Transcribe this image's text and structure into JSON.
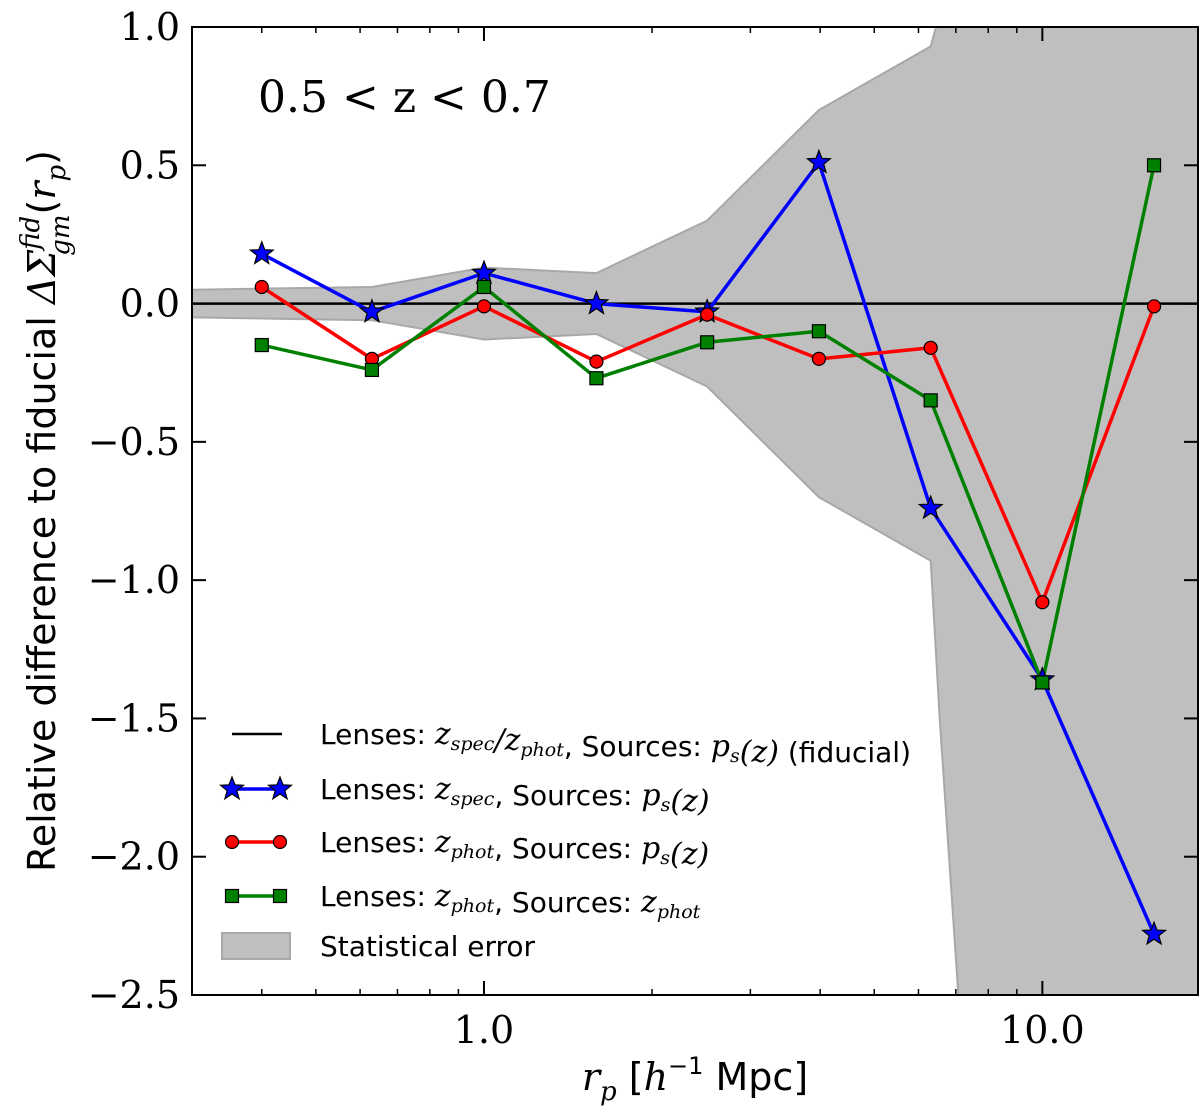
{
  "chart_data": {
    "type": "line",
    "xscale": "log",
    "xlim": [
      0.3,
      19.0
    ],
    "ylim": [
      -2.5,
      1.0
    ],
    "xticks": [
      1.0,
      10.0
    ],
    "xtick_labels": [
      "1.0",
      "10.0"
    ],
    "yticks": [
      1.0,
      0.5,
      0.0,
      -0.5,
      -1.0,
      -1.5,
      -2.0,
      -2.5
    ],
    "ytick_labels": [
      "1.0",
      "0.5",
      "0.0",
      "−0.5",
      "−1.0",
      "−1.5",
      "−2.0",
      "−2.5"
    ],
    "xlabel": "r_p  [h^-1 Mpc]",
    "ylabel": "Relative difference to fiducial ΔΣ_gm^fid(r_p)",
    "annotation": "0.5 < z < 0.7",
    "x": [
      0.4,
      0.63,
      1.0,
      1.59,
      2.51,
      3.98,
      6.31,
      10.0,
      15.85
    ],
    "reference_line": {
      "name": "Lenses: z_spec/z_phot, Sources: p_s(z) (fiducial)",
      "y": 0.0,
      "color": "#000000"
    },
    "band": {
      "name": "Statistical error",
      "color": "#bfbfbf",
      "edge_color": "#a8a8a8",
      "x": [
        0.3,
        0.63,
        1.0,
        1.59,
        2.51,
        3.98,
        6.31,
        6.55,
        7.1,
        19.0
      ],
      "upper": [
        0.05,
        0.06,
        0.13,
        0.11,
        0.3,
        0.7,
        0.93,
        1.05,
        1.05,
        1.05
      ],
      "lower": [
        -0.05,
        -0.06,
        -0.13,
        -0.11,
        -0.3,
        -0.7,
        -0.93,
        -1.5,
        -2.55,
        -2.55
      ]
    },
    "series": [
      {
        "name": "Lenses: z_spec, Sources: p_s(z)",
        "color": "#0000ff",
        "marker": "star",
        "values": [
          0.18,
          -0.03,
          0.11,
          0.0,
          -0.03,
          0.51,
          -0.74,
          -1.36,
          -2.28
        ]
      },
      {
        "name": "Lenses: z_phot, Sources: p_s(z)",
        "color": "#ff0000",
        "marker": "circle",
        "values": [
          0.06,
          -0.2,
          -0.01,
          -0.21,
          -0.04,
          -0.2,
          -0.16,
          -1.08,
          -0.01
        ]
      },
      {
        "name": "Lenses: z_phot, Sources: z_phot",
        "color": "#008000",
        "marker": "square",
        "values": [
          -0.15,
          -0.24,
          0.06,
          -0.27,
          -0.14,
          -0.1,
          -0.35,
          -1.37,
          0.5
        ]
      }
    ],
    "legend": {
      "placement": "lower-left",
      "entries": [
        {
          "key": "fiducial",
          "parts": [
            {
              "t": "Lenses: ",
              "m": false
            },
            {
              "t": "z",
              "m": true
            },
            {
              "t": "spec",
              "sub": true
            },
            {
              "t": "/",
              "m": true
            },
            {
              "t": "z",
              "m": true
            },
            {
              "t": "phot",
              "sub": true
            },
            {
              "t": ", Sources: ",
              "m": false
            },
            {
              "t": "p",
              "m": true
            },
            {
              "t": "s",
              "sub": true
            },
            {
              "t": "(",
              "m": true
            },
            {
              "t": "z",
              "m": true
            },
            {
              "t": ")",
              "m": true
            },
            {
              "t": " (fiducial)",
              "m": false
            }
          ]
        },
        {
          "key": "spec",
          "parts": [
            {
              "t": "Lenses: ",
              "m": false
            },
            {
              "t": "z",
              "m": true
            },
            {
              "t": "spec",
              "sub": true
            },
            {
              "t": ", Sources: ",
              "m": false
            },
            {
              "t": "p",
              "m": true
            },
            {
              "t": "s",
              "sub": true
            },
            {
              "t": "(",
              "m": true
            },
            {
              "t": "z",
              "m": true
            },
            {
              "t": ")",
              "m": true
            }
          ]
        },
        {
          "key": "phot-ps",
          "parts": [
            {
              "t": "Lenses: ",
              "m": false
            },
            {
              "t": "z",
              "m": true
            },
            {
              "t": "phot",
              "sub": true
            },
            {
              "t": ", Sources: ",
              "m": false
            },
            {
              "t": "p",
              "m": true
            },
            {
              "t": "s",
              "sub": true
            },
            {
              "t": "(",
              "m": true
            },
            {
              "t": "z",
              "m": true
            },
            {
              "t": ")",
              "m": true
            }
          ]
        },
        {
          "key": "phot-phot",
          "parts": [
            {
              "t": "Lenses: ",
              "m": false
            },
            {
              "t": "z",
              "m": true
            },
            {
              "t": "phot",
              "sub": true
            },
            {
              "t": ", Sources: ",
              "m": false
            },
            {
              "t": "z",
              "m": true
            },
            {
              "t": "phot",
              "sub": true
            }
          ]
        },
        {
          "key": "band",
          "parts": [
            {
              "t": "Statistical error",
              "m": false
            }
          ]
        }
      ]
    }
  }
}
